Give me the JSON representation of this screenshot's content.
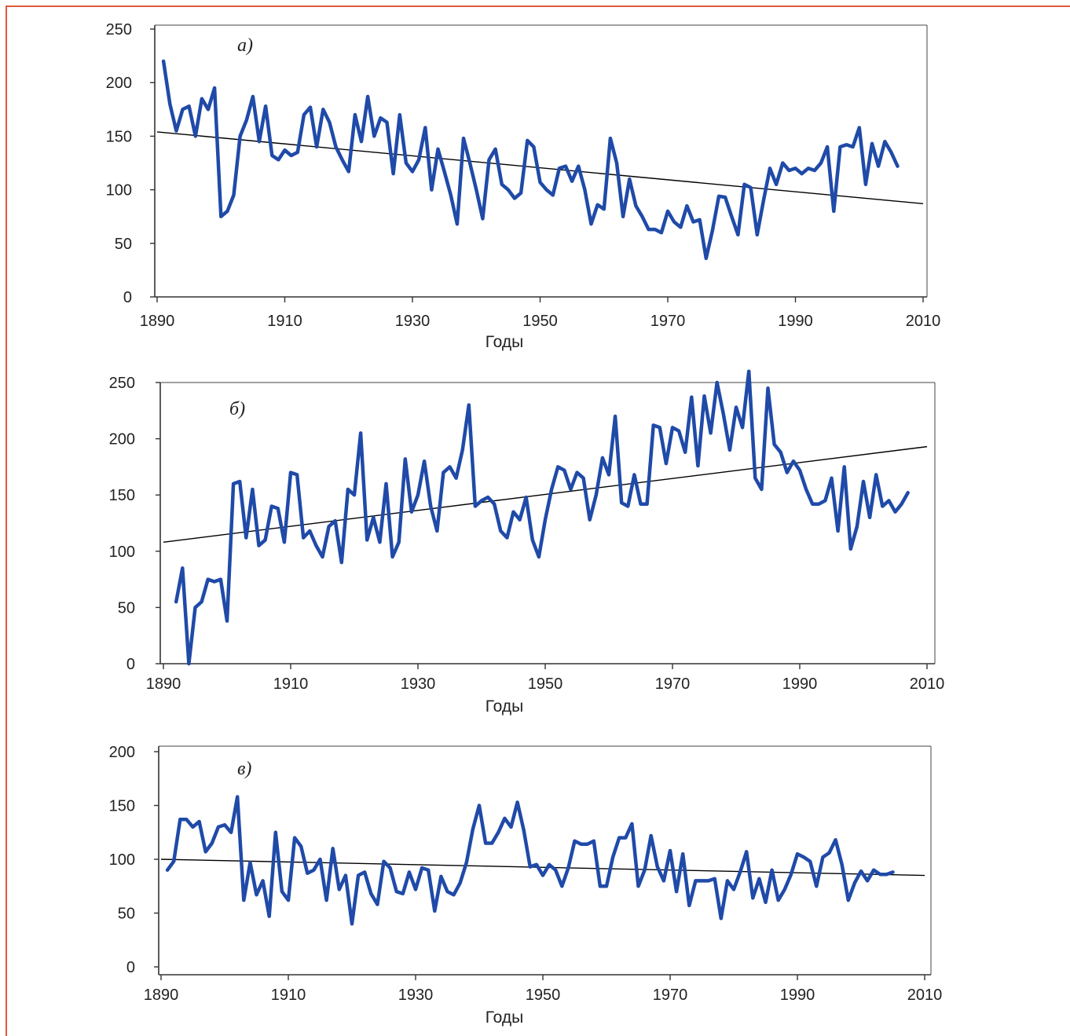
{
  "colors": {
    "series": "#1f4aa8",
    "trend": "#000000",
    "frame": "#e05a3a",
    "axis": "#333333"
  },
  "chart_data": [
    {
      "type": "line",
      "panel_label": "а)",
      "xlabel": "Годы",
      "ylabel": "",
      "xlim": [
        1890,
        2010
      ],
      "ylim": [
        0,
        250
      ],
      "x_ticks": [
        "1890",
        "1910",
        "1930",
        "1950",
        "1970",
        "1990",
        "2010"
      ],
      "y_ticks": [
        "0",
        "50",
        "100",
        "150",
        "200",
        "250"
      ],
      "x_start": 1891,
      "values": [
        220,
        180,
        155,
        175,
        178,
        150,
        185,
        175,
        195,
        75,
        80,
        95,
        150,
        165,
        187,
        145,
        178,
        132,
        128,
        137,
        132,
        135,
        170,
        177,
        140,
        175,
        163,
        140,
        128,
        117,
        170,
        145,
        187,
        150,
        167,
        163,
        115,
        170,
        125,
        117,
        128,
        158,
        100,
        138,
        117,
        95,
        68,
        148,
        125,
        100,
        73,
        128,
        138,
        105,
        100,
        92,
        97,
        146,
        140,
        107,
        100,
        95,
        120,
        122,
        108,
        122,
        100,
        68,
        86,
        82,
        148,
        125,
        75,
        110,
        85,
        75,
        63,
        63,
        60,
        80,
        70,
        65,
        85,
        70,
        72,
        36,
        62,
        94,
        93,
        75,
        58,
        105,
        102,
        58,
        90,
        120,
        105,
        125,
        118,
        120,
        115,
        120,
        118,
        125,
        140,
        80,
        140,
        142,
        140,
        158,
        105,
        143,
        122,
        145,
        135,
        122
      ],
      "trend": {
        "x": [
          1890,
          2010
        ],
        "y": [
          154,
          87
        ]
      }
    },
    {
      "type": "line",
      "panel_label": "б)",
      "xlabel": "Годы",
      "ylabel": "",
      "xlim": [
        1890,
        2010
      ],
      "ylim": [
        0,
        250
      ],
      "x_ticks": [
        "1890",
        "1910",
        "1930",
        "1950",
        "1970",
        "1990",
        "2010"
      ],
      "y_ticks": [
        "0",
        "50",
        "100",
        "150",
        "200",
        "250"
      ],
      "x_start": 1892,
      "values": [
        55,
        85,
        0,
        50,
        55,
        75,
        73,
        75,
        38,
        160,
        162,
        112,
        155,
        105,
        110,
        140,
        138,
        108,
        170,
        168,
        112,
        118,
        105,
        95,
        122,
        127,
        90,
        155,
        150,
        205,
        110,
        130,
        108,
        160,
        95,
        108,
        182,
        135,
        150,
        180,
        140,
        118,
        170,
        175,
        165,
        190,
        230,
        140,
        145,
        148,
        142,
        118,
        112,
        135,
        128,
        148,
        110,
        95,
        128,
        155,
        175,
        172,
        155,
        170,
        165,
        128,
        150,
        183,
        168,
        220,
        143,
        140,
        168,
        142,
        142,
        212,
        210,
        178,
        210,
        207,
        188,
        237,
        176,
        238,
        205,
        250,
        222,
        190,
        228,
        210,
        260,
        165,
        155,
        245,
        195,
        188,
        170,
        180,
        172,
        155,
        142,
        142,
        145,
        165,
        118,
        175,
        102,
        122,
        162,
        130,
        168,
        140,
        145,
        135,
        142,
        152
      ],
      "trend": {
        "x": [
          1890,
          2010
        ],
        "y": [
          108,
          193
        ]
      }
    },
    {
      "type": "line",
      "panel_label": "в)",
      "xlabel": "Годы",
      "ylabel": "",
      "xlim": [
        1890,
        2010
      ],
      "ylim": [
        0,
        200
      ],
      "x_ticks": [
        "1890",
        "1910",
        "1930",
        "1950",
        "1970",
        "1990",
        "2010"
      ],
      "y_ticks": [
        "0",
        "50",
        "100",
        "150",
        "200"
      ],
      "x_start": 1891,
      "values": [
        90,
        98,
        137,
        137,
        130,
        135,
        107,
        115,
        130,
        132,
        125,
        158,
        62,
        97,
        67,
        80,
        47,
        125,
        70,
        62,
        120,
        112,
        87,
        90,
        100,
        62,
        110,
        72,
        85,
        40,
        85,
        88,
        68,
        58,
        98,
        92,
        70,
        68,
        88,
        72,
        92,
        90,
        52,
        84,
        70,
        67,
        78,
        97,
        128,
        150,
        115,
        115,
        125,
        138,
        130,
        153,
        127,
        93,
        95,
        85,
        95,
        90,
        75,
        92,
        117,
        114,
        114,
        117,
        75,
        75,
        102,
        120,
        120,
        133,
        75,
        90,
        122,
        93,
        80,
        108,
        70,
        105,
        57,
        80,
        80,
        80,
        82,
        45,
        80,
        72,
        88,
        107,
        64,
        82,
        60,
        90,
        62,
        72,
        86,
        105,
        102,
        98,
        75,
        102,
        106,
        118,
        95,
        62,
        78,
        89,
        80,
        90,
        86,
        86,
        88
      ],
      "trend": {
        "x": [
          1890,
          2010
        ],
        "y": [
          100,
          85
        ]
      }
    }
  ]
}
